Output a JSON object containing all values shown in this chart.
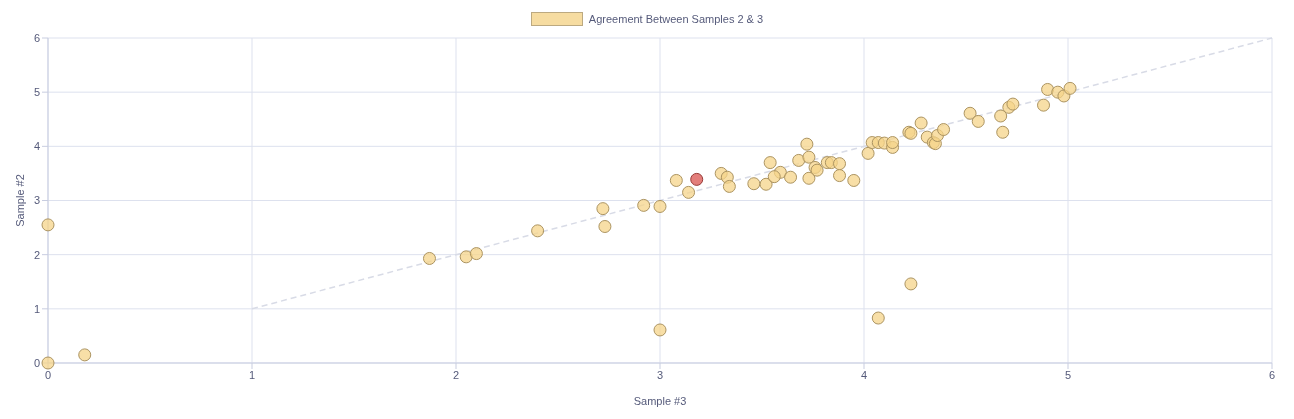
{
  "chart_data": {
    "type": "scatter",
    "xlabel": "Sample #3",
    "ylabel": "Sample #2",
    "xlim": [
      0,
      6
    ],
    "ylim": [
      0,
      6
    ],
    "xticks": [
      0,
      1,
      2,
      3,
      4,
      5,
      6
    ],
    "yticks": [
      0,
      1,
      2,
      3,
      4,
      5,
      6
    ],
    "grid": true,
    "legend": "top",
    "marker": "circle",
    "series": [
      {
        "name": "Agreement Between Samples 2 & 3",
        "color": "#f5d48a",
        "x": [
          0,
          0.18,
          0,
          1.87,
          2.05,
          2.1,
          2.4,
          2.72,
          2.73,
          2.92,
          3.0,
          3.0,
          3.08,
          3.14,
          3.3,
          3.33,
          3.34,
          3.46,
          3.52,
          3.54,
          3.59,
          3.56,
          3.64,
          3.68,
          3.72,
          3.73,
          3.73,
          3.76,
          3.77,
          3.82,
          3.84,
          3.88,
          3.88,
          3.95,
          4.02,
          4.04,
          4.07,
          4.1,
          4.14,
          4.14,
          4.22,
          4.23,
          4.28,
          4.31,
          4.34,
          4.35,
          4.36,
          4.39,
          4.52,
          4.56,
          4.67,
          4.68,
          4.71,
          4.73,
          4.88,
          4.9,
          4.95,
          4.98,
          5.01,
          4.23,
          4.07
        ],
        "values": [
          0,
          0.15,
          2.55,
          1.93,
          1.96,
          2.02,
          2.44,
          2.85,
          2.52,
          2.91,
          2.89,
          0.61,
          3.37,
          3.15,
          3.5,
          3.43,
          3.26,
          3.31,
          3.3,
          3.7,
          3.52,
          3.44,
          3.43,
          3.74,
          4.04,
          3.8,
          3.41,
          3.61,
          3.56,
          3.7,
          3.7,
          3.68,
          3.46,
          3.37,
          3.87,
          4.07,
          4.07,
          4.06,
          3.98,
          4.07,
          4.26,
          4.24,
          4.43,
          4.17,
          4.07,
          4.05,
          4.2,
          4.31,
          4.61,
          4.46,
          4.56,
          4.26,
          4.72,
          4.78,
          4.76,
          5.05,
          5.0,
          4.93,
          5.07,
          1.46,
          0.83
        ]
      },
      {
        "color": "#d9534f",
        "x": [
          3.18
        ],
        "values": [
          3.39
        ]
      },
      {
        "type": "line",
        "color": "#d8dbe6",
        "line_style": "dashed",
        "marker": "none",
        "x": [
          1,
          6
        ],
        "values": [
          1,
          6
        ]
      }
    ]
  }
}
